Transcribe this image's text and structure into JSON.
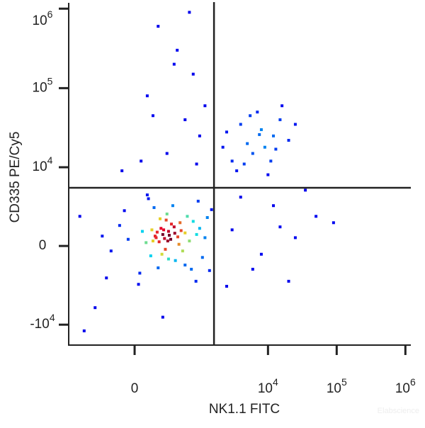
{
  "chart_data": {
    "type": "scatter",
    "x_label": "NK1.1 FITC",
    "y_label": "CD335 PE/Cy5",
    "watermark": "Elabscience",
    "xscale": "biexponential",
    "yscale": "biexponential",
    "xlim": [
      -1030,
      1200000
    ],
    "ylim": [
      -18200,
      1160000
    ],
    "xticks": [
      0,
      {
        "value": 10000,
        "label": "10",
        "exponent": "4"
      },
      {
        "value": 100000,
        "label": "10",
        "exponent": "5"
      },
      {
        "value": 1000000,
        "label": "10",
        "exponent": "6"
      }
    ],
    "yticks": [
      {
        "value": -10000,
        "label": "-10",
        "exponent": "4"
      },
      0,
      {
        "value": 10000,
        "label": "10",
        "exponent": "4"
      },
      {
        "value": 100000,
        "label": "10",
        "exponent": "5"
      },
      {
        "value": 1000000,
        "label": "10",
        "exponent": "6"
      }
    ],
    "gates": {
      "x": 1630,
      "y": 5390
    },
    "series": [
      {
        "x": [
          250,
          180,
          320,
          400,
          150,
          600,
          90,
          280,
          350,
          500,
          220,
          130,
          700,
          800,
          60,
          -50,
          420,
          900,
          300,
          200,
          1000,
          -120,
          160,
          550,
          650,
          1200,
          -200,
          40,
          380,
          750,
          1300,
          -80,
          480,
          260,
          330,
          190,
          270,
          410,
          230,
          310,
          170,
          360,
          240,
          290,
          460,
          140,
          520,
          210,
          320,
          600,
          1100,
          1500,
          950,
          -250,
          30,
          110,
          880,
          1400,
          -300,
          100,
          3000,
          5000,
          8000,
          12000,
          6000,
          4000,
          15000,
          9000,
          20000,
          7000,
          3500,
          11000,
          2500,
          16000,
          5500,
          10000,
          25000,
          4500,
          13000,
          7500,
          300,
          600,
          100,
          800,
          450,
          200,
          1000,
          700,
          50,
          1200,
          400,
          900,
          150,
          2200,
          -100,
          3000,
          6000,
          12000,
          25000,
          50000,
          4000,
          8000,
          20000,
          90000,
          2500,
          35000,
          15000,
          -600,
          -400,
          -700,
          250
        ],
        "y": [
          700,
          500,
          900,
          1200,
          300,
          800,
          200,
          -200,
          400,
          1500,
          1800,
          -600,
          300,
          1600,
          900,
          400,
          -900,
          700,
          2200,
          -1400,
          1100,
          1300,
          2800,
          -300,
          2000,
          500,
          -300,
          -1800,
          3000,
          -1500,
          1900,
          2500,
          100,
          1000,
          650,
          850,
          450,
          780,
          1100,
          300,
          600,
          1400,
          -500,
          1700,
          550,
          1000,
          950,
          250,
          -800,
          -1200,
          -700,
          2600,
          3500,
          -2200,
          -2800,
          3800,
          -2500,
          -1600,
          600,
          4300,
          12000,
          20000,
          30000,
          25000,
          15000,
          35000,
          40000,
          18000,
          22000,
          50000,
          9000,
          12000,
          28000,
          60000,
          45000,
          8000,
          35000,
          11000,
          17000,
          26000,
          15000,
          40000,
          80000,
          150000,
          300000,
          600000,
          25000,
          900000,
          12000,
          60000,
          200000,
          11000,
          45000,
          18000,
          9000,
          1000,
          -1500,
          3000,
          500,
          2000,
          4000,
          -500,
          -2500,
          1500,
          -3000,
          5000,
          1200,
          -12000,
          -6000,
          2000,
          -8000
        ]
      }
    ]
  }
}
